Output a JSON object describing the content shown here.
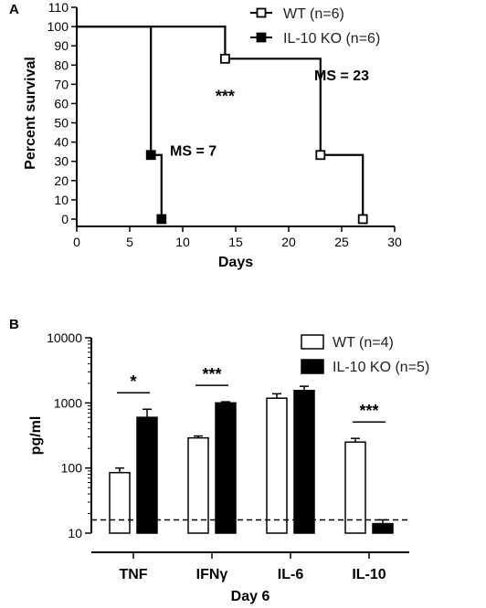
{
  "chart_data": [
    {
      "panel": "A",
      "type": "line",
      "step": true,
      "xlabel": "Days",
      "ylabel": "Percent survival",
      "xlim": [
        0,
        30
      ],
      "ylim": [
        0,
        110
      ],
      "xticks": [
        0,
        5,
        10,
        15,
        20,
        25,
        30
      ],
      "yticks": [
        0,
        10,
        20,
        30,
        40,
        50,
        60,
        70,
        80,
        90,
        100,
        110
      ],
      "legend_position": "top-right",
      "series": [
        {
          "name": "WT (n=6)",
          "marker": "open-square",
          "x": [
            0,
            14,
            23,
            27
          ],
          "y": [
            100,
            83.3,
            33.3,
            0
          ],
          "marked_points": [
            [
              14,
              83.3
            ],
            [
              23,
              33.3
            ],
            [
              27,
              0
            ]
          ]
        },
        {
          "name": "IL-10 KO (n=6)",
          "marker": "filled-square",
          "x": [
            0,
            7,
            8
          ],
          "y": [
            100,
            33.3,
            0
          ],
          "marked_points": [
            [
              7,
              33.3
            ],
            [
              8,
              0
            ]
          ]
        }
      ],
      "annotations": [
        {
          "text": "***",
          "x": 14,
          "y": 61
        },
        {
          "text": "MS = 23",
          "x": 25,
          "y": 72
        },
        {
          "text": "MS = 7",
          "x": 11,
          "y": 33
        }
      ]
    },
    {
      "panel": "B",
      "type": "bar",
      "xlabel": "Day 6",
      "ylabel": "pg/ml",
      "yscale": "log",
      "ylim": [
        10,
        10000
      ],
      "yticks": [
        10,
        100,
        1000,
        10000
      ],
      "categories": [
        "TNF",
        "IFNγ",
        "IL-6",
        "IL-10"
      ],
      "legend_position": "top-right",
      "series": [
        {
          "name": "WT (n=4)",
          "fill": "open",
          "values": [
            85,
            290,
            1180,
            250
          ],
          "errors": [
            15,
            20,
            200,
            35
          ]
        },
        {
          "name": "IL-10 KO (n=5)",
          "fill": "filled",
          "values": [
            600,
            1000,
            1550,
            14
          ],
          "errors": [
            200,
            40,
            250,
            2
          ]
        }
      ],
      "significance": [
        "*",
        "***",
        "",
        "***"
      ],
      "reference_line": {
        "value": 16,
        "style": "dashed"
      }
    }
  ]
}
